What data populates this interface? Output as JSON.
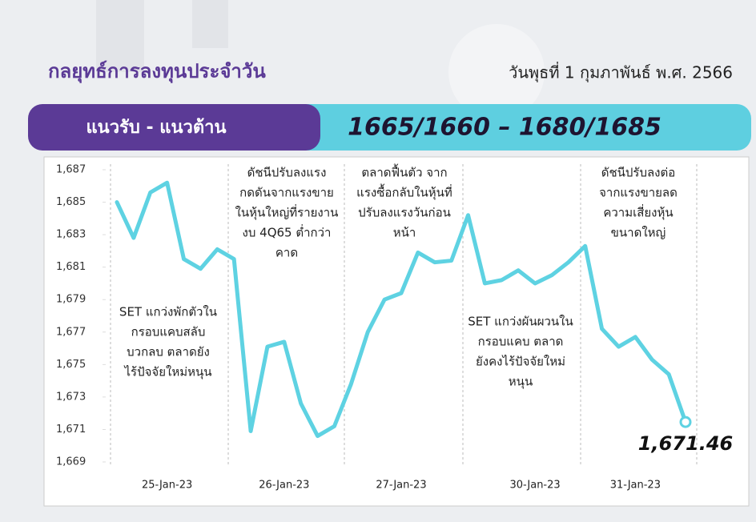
{
  "header": {
    "title": "กลยุทธ์การลงทุนประจำวัน",
    "date": "วันพุธที่ 1 กุมภาพันธ์ พ.ศ. 2566"
  },
  "banner": {
    "label": "แนวรับ - แนวต้าน",
    "levels": "1665/1660 – 1680/1685"
  },
  "chart_data": {
    "type": "line",
    "categories": [
      null,
      null,
      null,
      "25-Jan-23",
      null,
      null,
      null,
      null,
      null,
      null,
      "26-Jan-23",
      null,
      null,
      null,
      null,
      null,
      null,
      "27-Jan-23",
      null,
      null,
      null,
      null,
      null,
      null,
      null,
      "30-Jan-23",
      null,
      null,
      null,
      null,
      null,
      "31-Jan-23",
      null,
      null,
      null
    ],
    "series": [
      {
        "name": "SET",
        "color": "#5ed2e2",
        "values": [
          1685.0,
          1682.8,
          1685.6,
          1686.2,
          1681.5,
          1680.9,
          1682.1,
          1681.5,
          1670.9,
          1676.1,
          1676.4,
          1672.6,
          1670.6,
          1671.2,
          1673.8,
          1677.0,
          1679.0,
          1679.4,
          1681.9,
          1681.3,
          1681.4,
          1684.2,
          1680.0,
          1680.2,
          1680.8,
          1680.0,
          1680.5,
          1681.3,
          1682.3,
          1677.2,
          1676.1,
          1676.7,
          1675.3,
          1674.4,
          1671.46
        ],
        "value_labels": [
          null,
          null,
          null,
          null,
          null,
          null,
          null,
          null,
          null,
          null,
          null,
          null,
          null,
          null,
          null,
          null,
          null,
          null,
          null,
          null,
          null,
          null,
          null,
          null,
          null,
          null,
          null,
          null,
          null,
          null,
          null,
          null,
          null,
          null,
          "1,671.46"
        ]
      }
    ],
    "ylim": [
      1669,
      1687
    ],
    "yticks": [
      {
        "value": 1669,
        "label": "1,669"
      },
      {
        "value": 1671,
        "label": "1,671"
      },
      {
        "value": 1673,
        "label": "1,673"
      },
      {
        "value": 1675,
        "label": "1,675"
      },
      {
        "value": 1677,
        "label": "1,677"
      },
      {
        "value": 1679,
        "label": "1,679"
      },
      {
        "value": 1681,
        "label": "1,681"
      },
      {
        "value": 1683,
        "label": "1,683"
      },
      {
        "value": 1685,
        "label": "1,685"
      },
      {
        "value": 1687,
        "label": "1,687"
      }
    ],
    "annotations": [
      [
        "SET แกว่งพักตัวใน",
        "กรอบแคบสลับ",
        "บวกลบ ตลาดยัง",
        "ไร้ปัจจัยใหม่หนุน"
      ],
      [
        "ดัชนีปรับลงแรง",
        "กดดันจากแรงขาย",
        "ในหุ้นใหญ่ที่รายงาน",
        "งบ 4Q65 ต่ำกว่า",
        "คาด"
      ],
      [
        "ตลาดฟื้นตัว จาก",
        "แรงซื้อกลับในหุ้นที่",
        "ปรับลงแรงวันก่อน",
        "หน้า"
      ],
      [
        "SET แกว่งผันผวนใน",
        "กรอบแคบ ตลาด",
        "ยังคงไร้ปัจจัยใหม่",
        "หนุน"
      ],
      [
        "ดัชนีปรับลงต่อ",
        "จากแรงขายลด",
        "ความเสี่ยงหุ้น",
        "ขนาดใหญ่"
      ]
    ]
  }
}
